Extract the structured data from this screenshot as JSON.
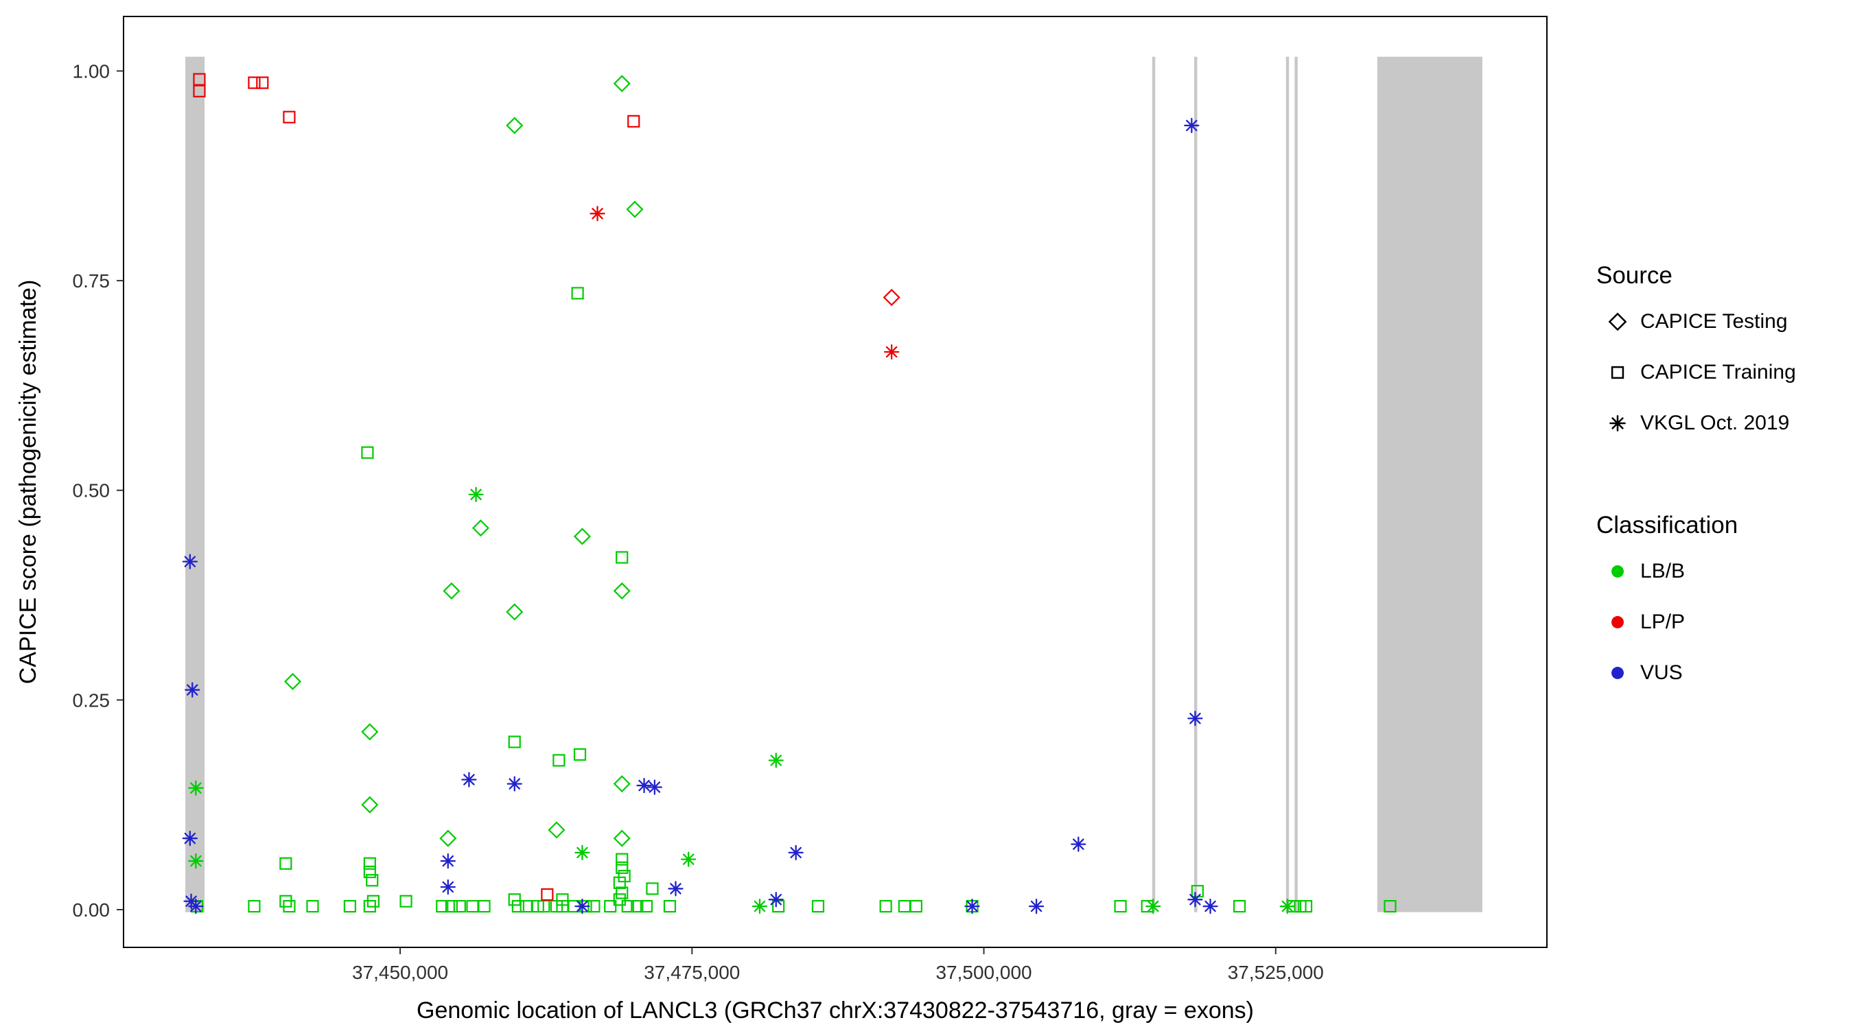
{
  "figure": {
    "background": "#FFFFFF"
  },
  "colors": {
    "LB/B": "#00CC00",
    "LP/P": "#EE0000",
    "VUS": "#2222CC"
  },
  "legend": {
    "source": {
      "title": "Source",
      "items": [
        {
          "label": "CAPICE Testing",
          "shape": "diamond"
        },
        {
          "label": "CAPICE Training",
          "shape": "square"
        },
        {
          "label": "VKGL Oct. 2019",
          "shape": "asterisk"
        }
      ]
    },
    "classification": {
      "title": "Classification",
      "items": [
        {
          "label": "LB/B",
          "color_key": "LB/B"
        },
        {
          "label": "LP/P",
          "color_key": "LP/P"
        },
        {
          "label": "VUS",
          "color_key": "VUS"
        }
      ]
    }
  },
  "chart_data": {
    "type": "scatter",
    "title": "",
    "xlabel": "Genomic location of LANCL3 (GRCh37 chrX:37430822-37543716, gray = exons)",
    "ylabel": "CAPICE score (pathogenicity estimate)",
    "x_domain": [
      37430822,
      37543716
    ],
    "y_domain": [
      0,
      1
    ],
    "grid": false,
    "legend_position": "right",
    "x_ticks": [
      {
        "value": 37450000,
        "label": "37,450,000"
      },
      {
        "value": 37475000,
        "label": "37,475,000"
      },
      {
        "value": 37500000,
        "label": "37,500,000"
      },
      {
        "value": 37525000,
        "label": "37,525,000"
      }
    ],
    "y_ticks": [
      {
        "value": 0,
        "label": "0.00"
      },
      {
        "value": 0.25,
        "label": "0.25"
      },
      {
        "value": 0.5,
        "label": "0.50"
      },
      {
        "value": 0.75,
        "label": "0.75"
      },
      {
        "value": 1,
        "label": "1.00"
      }
    ],
    "exon_color": "#C8C8C8",
    "exons": [
      {
        "start": 37431600,
        "end": 37433250
      },
      {
        "start": 37514420,
        "end": 37514680
      },
      {
        "start": 37518020,
        "end": 37518280
      },
      {
        "start": 37525880,
        "end": 37526140
      },
      {
        "start": 37526620,
        "end": 37526880
      },
      {
        "start": 37533700,
        "end": 37542700
      }
    ],
    "shapes": {
      "testing": "diamond",
      "training": "square",
      "vkgl": "asterisk"
    },
    "points": [
      {
        "x": 37459800,
        "y": 0.935,
        "s": "testing",
        "c": "LB/B"
      },
      {
        "x": 37469000,
        "y": 0.985,
        "s": "testing",
        "c": "LB/B"
      },
      {
        "x": 37470100,
        "y": 0.835,
        "s": "testing",
        "c": "LB/B"
      },
      {
        "x": 37456900,
        "y": 0.455,
        "s": "testing",
        "c": "LB/B"
      },
      {
        "x": 37465600,
        "y": 0.445,
        "s": "testing",
        "c": "LB/B"
      },
      {
        "x": 37454400,
        "y": 0.38,
        "s": "testing",
        "c": "LB/B"
      },
      {
        "x": 37469000,
        "y": 0.38,
        "s": "testing",
        "c": "LB/B"
      },
      {
        "x": 37459800,
        "y": 0.355,
        "s": "testing",
        "c": "LB/B"
      },
      {
        "x": 37440800,
        "y": 0.272,
        "s": "testing",
        "c": "LB/B"
      },
      {
        "x": 37447400,
        "y": 0.212,
        "s": "testing",
        "c": "LB/B"
      },
      {
        "x": 37447400,
        "y": 0.125,
        "s": "testing",
        "c": "LB/B"
      },
      {
        "x": 37469000,
        "y": 0.15,
        "s": "testing",
        "c": "LB/B"
      },
      {
        "x": 37463400,
        "y": 0.095,
        "s": "testing",
        "c": "LB/B"
      },
      {
        "x": 37454100,
        "y": 0.085,
        "s": "testing",
        "c": "LB/B"
      },
      {
        "x": 37469000,
        "y": 0.085,
        "s": "testing",
        "c": "LB/B"
      },
      {
        "x": 37465200,
        "y": 0.735,
        "s": "training",
        "c": "LB/B"
      },
      {
        "x": 37447200,
        "y": 0.545,
        "s": "training",
        "c": "LB/B"
      },
      {
        "x": 37469000,
        "y": 0.42,
        "s": "training",
        "c": "LB/B"
      },
      {
        "x": 37459800,
        "y": 0.2,
        "s": "training",
        "c": "LB/B"
      },
      {
        "x": 37465400,
        "y": 0.185,
        "s": "training",
        "c": "LB/B"
      },
      {
        "x": 37463600,
        "y": 0.178,
        "s": "training",
        "c": "LB/B"
      },
      {
        "x": 37440200,
        "y": 0.055,
        "s": "training",
        "c": "LB/B"
      },
      {
        "x": 37447400,
        "y": 0.055,
        "s": "training",
        "c": "LB/B"
      },
      {
        "x": 37447400,
        "y": 0.045,
        "s": "training",
        "c": "LB/B"
      },
      {
        "x": 37447600,
        "y": 0.035,
        "s": "training",
        "c": "LB/B"
      },
      {
        "x": 37469000,
        "y": 0.06,
        "s": "training",
        "c": "LB/B"
      },
      {
        "x": 37469000,
        "y": 0.05,
        "s": "training",
        "c": "LB/B"
      },
      {
        "x": 37469200,
        "y": 0.04,
        "s": "training",
        "c": "LB/B"
      },
      {
        "x": 37468800,
        "y": 0.032,
        "s": "training",
        "c": "LB/B"
      },
      {
        "x": 37471600,
        "y": 0.025,
        "s": "training",
        "c": "LB/B"
      },
      {
        "x": 37518300,
        "y": 0.022,
        "s": "training",
        "c": "LB/B"
      },
      {
        "x": 37432600,
        "y": 0.004,
        "s": "training",
        "c": "LB/B"
      },
      {
        "x": 37437500,
        "y": 0.004,
        "s": "training",
        "c": "LB/B"
      },
      {
        "x": 37440200,
        "y": 0.01,
        "s": "training",
        "c": "LB/B"
      },
      {
        "x": 37440500,
        "y": 0.004,
        "s": "training",
        "c": "LB/B"
      },
      {
        "x": 37442500,
        "y": 0.004,
        "s": "training",
        "c": "LB/B"
      },
      {
        "x": 37445700,
        "y": 0.004,
        "s": "training",
        "c": "LB/B"
      },
      {
        "x": 37447400,
        "y": 0.004,
        "s": "training",
        "c": "LB/B"
      },
      {
        "x": 37447700,
        "y": 0.01,
        "s": "training",
        "c": "LB/B"
      },
      {
        "x": 37450500,
        "y": 0.01,
        "s": "training",
        "c": "LB/B"
      },
      {
        "x": 37453600,
        "y": 0.004,
        "s": "training",
        "c": "LB/B"
      },
      {
        "x": 37454400,
        "y": 0.004,
        "s": "training",
        "c": "LB/B"
      },
      {
        "x": 37455100,
        "y": 0.004,
        "s": "training",
        "c": "LB/B"
      },
      {
        "x": 37456200,
        "y": 0.004,
        "s": "training",
        "c": "LB/B"
      },
      {
        "x": 37457200,
        "y": 0.004,
        "s": "training",
        "c": "LB/B"
      },
      {
        "x": 37459800,
        "y": 0.012,
        "s": "training",
        "c": "LB/B"
      },
      {
        "x": 37460100,
        "y": 0.004,
        "s": "training",
        "c": "LB/B"
      },
      {
        "x": 37460800,
        "y": 0.004,
        "s": "training",
        "c": "LB/B"
      },
      {
        "x": 37461800,
        "y": 0.004,
        "s": "training",
        "c": "LB/B"
      },
      {
        "x": 37462300,
        "y": 0.004,
        "s": "training",
        "c": "LB/B"
      },
      {
        "x": 37463400,
        "y": 0.004,
        "s": "training",
        "c": "LB/B"
      },
      {
        "x": 37463900,
        "y": 0.012,
        "s": "training",
        "c": "LB/B"
      },
      {
        "x": 37463900,
        "y": 0.004,
        "s": "training",
        "c": "LB/B"
      },
      {
        "x": 37464900,
        "y": 0.004,
        "s": "training",
        "c": "LB/B"
      },
      {
        "x": 37465900,
        "y": 0.004,
        "s": "training",
        "c": "LB/B"
      },
      {
        "x": 37466600,
        "y": 0.004,
        "s": "training",
        "c": "LB/B"
      },
      {
        "x": 37468000,
        "y": 0.004,
        "s": "training",
        "c": "LB/B"
      },
      {
        "x": 37468800,
        "y": 0.012,
        "s": "training",
        "c": "LB/B"
      },
      {
        "x": 37469000,
        "y": 0.02,
        "s": "training",
        "c": "LB/B"
      },
      {
        "x": 37469500,
        "y": 0.004,
        "s": "training",
        "c": "LB/B"
      },
      {
        "x": 37470300,
        "y": 0.004,
        "s": "training",
        "c": "LB/B"
      },
      {
        "x": 37471100,
        "y": 0.004,
        "s": "training",
        "c": "LB/B"
      },
      {
        "x": 37473100,
        "y": 0.004,
        "s": "training",
        "c": "LB/B"
      },
      {
        "x": 37482400,
        "y": 0.004,
        "s": "training",
        "c": "LB/B"
      },
      {
        "x": 37485800,
        "y": 0.004,
        "s": "training",
        "c": "LB/B"
      },
      {
        "x": 37491600,
        "y": 0.004,
        "s": "training",
        "c": "LB/B"
      },
      {
        "x": 37493200,
        "y": 0.004,
        "s": "training",
        "c": "LB/B"
      },
      {
        "x": 37494200,
        "y": 0.004,
        "s": "training",
        "c": "LB/B"
      },
      {
        "x": 37499000,
        "y": 0.004,
        "s": "training",
        "c": "LB/B"
      },
      {
        "x": 37511700,
        "y": 0.004,
        "s": "training",
        "c": "LB/B"
      },
      {
        "x": 37514000,
        "y": 0.004,
        "s": "training",
        "c": "LB/B"
      },
      {
        "x": 37521900,
        "y": 0.004,
        "s": "training",
        "c": "LB/B"
      },
      {
        "x": 37526500,
        "y": 0.004,
        "s": "training",
        "c": "LB/B"
      },
      {
        "x": 37527100,
        "y": 0.004,
        "s": "training",
        "c": "LB/B"
      },
      {
        "x": 37527600,
        "y": 0.004,
        "s": "training",
        "c": "LB/B"
      },
      {
        "x": 37534800,
        "y": 0.004,
        "s": "training",
        "c": "LB/B"
      },
      {
        "x": 37432500,
        "y": 0.145,
        "s": "vkgl",
        "c": "LB/B"
      },
      {
        "x": 37432500,
        "y": 0.058,
        "s": "vkgl",
        "c": "LB/B"
      },
      {
        "x": 37456500,
        "y": 0.495,
        "s": "vkgl",
        "c": "LB/B"
      },
      {
        "x": 37465600,
        "y": 0.068,
        "s": "vkgl",
        "c": "LB/B"
      },
      {
        "x": 37474700,
        "y": 0.06,
        "s": "vkgl",
        "c": "LB/B"
      },
      {
        "x": 37482200,
        "y": 0.178,
        "s": "vkgl",
        "c": "LB/B"
      },
      {
        "x": 37480800,
        "y": 0.004,
        "s": "vkgl",
        "c": "LB/B"
      },
      {
        "x": 37514500,
        "y": 0.004,
        "s": "vkgl",
        "c": "LB/B"
      },
      {
        "x": 37526000,
        "y": 0.004,
        "s": "vkgl",
        "c": "LB/B"
      },
      {
        "x": 37432000,
        "y": 0.415,
        "s": "vkgl",
        "c": "VUS"
      },
      {
        "x": 37432200,
        "y": 0.262,
        "s": "vkgl",
        "c": "VUS"
      },
      {
        "x": 37432000,
        "y": 0.085,
        "s": "vkgl",
        "c": "VUS"
      },
      {
        "x": 37432100,
        "y": 0.01,
        "s": "vkgl",
        "c": "VUS"
      },
      {
        "x": 37432500,
        "y": 0.004,
        "s": "vkgl",
        "c": "VUS"
      },
      {
        "x": 37517800,
        "y": 0.935,
        "s": "vkgl",
        "c": "VUS"
      },
      {
        "x": 37518100,
        "y": 0.228,
        "s": "vkgl",
        "c": "VUS"
      },
      {
        "x": 37455900,
        "y": 0.155,
        "s": "vkgl",
        "c": "VUS"
      },
      {
        "x": 37459800,
        "y": 0.15,
        "s": "vkgl",
        "c": "VUS"
      },
      {
        "x": 37470900,
        "y": 0.148,
        "s": "vkgl",
        "c": "VUS"
      },
      {
        "x": 37471800,
        "y": 0.146,
        "s": "vkgl",
        "c": "VUS"
      },
      {
        "x": 37473600,
        "y": 0.025,
        "s": "vkgl",
        "c": "VUS"
      },
      {
        "x": 37454100,
        "y": 0.058,
        "s": "vkgl",
        "c": "VUS"
      },
      {
        "x": 37454100,
        "y": 0.027,
        "s": "vkgl",
        "c": "VUS"
      },
      {
        "x": 37483900,
        "y": 0.068,
        "s": "vkgl",
        "c": "VUS"
      },
      {
        "x": 37482200,
        "y": 0.012,
        "s": "vkgl",
        "c": "VUS"
      },
      {
        "x": 37508100,
        "y": 0.078,
        "s": "vkgl",
        "c": "VUS"
      },
      {
        "x": 37504500,
        "y": 0.004,
        "s": "vkgl",
        "c": "VUS"
      },
      {
        "x": 37499000,
        "y": 0.004,
        "s": "vkgl",
        "c": "VUS"
      },
      {
        "x": 37465600,
        "y": 0.004,
        "s": "vkgl",
        "c": "VUS"
      },
      {
        "x": 37518100,
        "y": 0.012,
        "s": "vkgl",
        "c": "VUS"
      },
      {
        "x": 37519400,
        "y": 0.004,
        "s": "vkgl",
        "c": "VUS"
      },
      {
        "x": 37432800,
        "y": 0.99,
        "s": "training",
        "c": "LP/P"
      },
      {
        "x": 37432800,
        "y": 0.976,
        "s": "training",
        "c": "LP/P"
      },
      {
        "x": 37437500,
        "y": 0.986,
        "s": "training",
        "c": "LP/P"
      },
      {
        "x": 37438200,
        "y": 0.986,
        "s": "training",
        "c": "LP/P"
      },
      {
        "x": 37440500,
        "y": 0.945,
        "s": "training",
        "c": "LP/P"
      },
      {
        "x": 37470000,
        "y": 0.94,
        "s": "training",
        "c": "LP/P"
      },
      {
        "x": 37462600,
        "y": 0.018,
        "s": "training",
        "c": "LP/P"
      },
      {
        "x": 37492100,
        "y": 0.73,
        "s": "testing",
        "c": "LP/P"
      },
      {
        "x": 37466900,
        "y": 0.83,
        "s": "vkgl",
        "c": "LP/P"
      },
      {
        "x": 37492100,
        "y": 0.665,
        "s": "vkgl",
        "c": "LP/P"
      }
    ]
  }
}
